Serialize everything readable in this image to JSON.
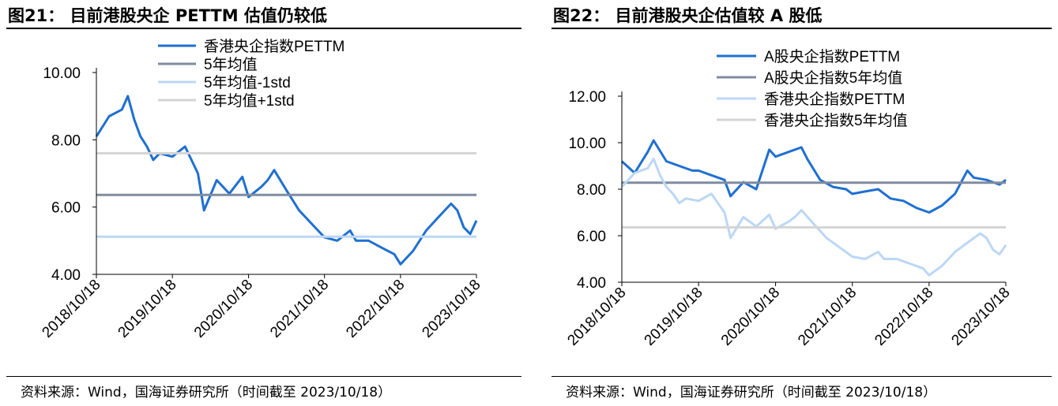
{
  "panel_left": {
    "title": "图21： 目前港股央企 PETTM 估值仍较低",
    "source": "资料来源：Wind，国海证券研究所（时间截至 2023/10/18）"
  },
  "panel_right": {
    "title": "图22： 目前港股央企估值较 A 股低",
    "source": "资料来源：Wind，国海证券研究所（时间截至 2023/10/18）"
  },
  "chart_data": [
    {
      "type": "line",
      "ylim": [
        4.0,
        10.0
      ],
      "yticks": [
        "4.00",
        "6.00",
        "8.00",
        "10.00"
      ],
      "xticks": [
        "2018/10/18",
        "2019/10/18",
        "2020/10/18",
        "2021/10/18",
        "2022/10/18",
        "2023/10/18"
      ],
      "grid": false,
      "legend_position": "top-left",
      "series": [
        {
          "name": "香港央企指数PETTM",
          "color": "#1f6fd1",
          "x": [
            "2018/10/18",
            "2018/12/18",
            "2019/02/18",
            "2019/03/18",
            "2019/04/18",
            "2019/05/18",
            "2019/06/18",
            "2019/07/18",
            "2019/08/18",
            "2019/10/18",
            "2019/12/18",
            "2020/02/18",
            "2020/03/18",
            "2020/05/18",
            "2020/07/18",
            "2020/09/18",
            "2020/10/18",
            "2020/12/18",
            "2021/01/18",
            "2021/02/18",
            "2021/04/18",
            "2021/06/18",
            "2021/08/18",
            "2021/10/18",
            "2021/12/18",
            "2022/02/18",
            "2022/03/18",
            "2022/05/18",
            "2022/07/18",
            "2022/09/18",
            "2022/10/18",
            "2022/12/18",
            "2023/02/18",
            "2023/04/18",
            "2023/06/18",
            "2023/07/18",
            "2023/08/18",
            "2023/09/18",
            "2023/10/18"
          ],
          "values": [
            8.1,
            8.7,
            8.9,
            9.3,
            8.6,
            8.1,
            7.8,
            7.4,
            7.6,
            7.5,
            7.8,
            7.0,
            5.9,
            6.8,
            6.4,
            6.9,
            6.3,
            6.6,
            6.8,
            7.1,
            6.5,
            5.9,
            5.5,
            5.1,
            5.0,
            5.3,
            5.0,
            5.0,
            4.8,
            4.6,
            4.3,
            4.7,
            5.3,
            5.7,
            6.1,
            5.9,
            5.4,
            5.2,
            5.6
          ]
        },
        {
          "name": "5年均值",
          "color": "#7f8ca0",
          "constant": 6.36
        },
        {
          "name": "5年均值-1std",
          "color": "#bcd7f5",
          "constant": 5.12
        },
        {
          "name": "5年均值+1std",
          "color": "#d4d4d4",
          "constant": 7.6
        }
      ]
    },
    {
      "type": "line",
      "ylim": [
        4.0,
        12.0
      ],
      "yticks": [
        "4.00",
        "6.00",
        "8.00",
        "10.00",
        "12.00"
      ],
      "xticks": [
        "2018/10/18",
        "2019/10/18",
        "2020/10/18",
        "2021/10/18",
        "2022/10/18",
        "2023/10/18"
      ],
      "grid": false,
      "legend_position": "top-right",
      "series": [
        {
          "name": "A股央企指数PETTM",
          "color": "#1f6fd1",
          "x": [
            "2018/10/18",
            "2018/12/18",
            "2019/02/18",
            "2019/03/18",
            "2019/05/18",
            "2019/07/18",
            "2019/09/18",
            "2019/10/18",
            "2019/12/18",
            "2020/02/18",
            "2020/03/18",
            "2020/05/18",
            "2020/07/18",
            "2020/09/18",
            "2020/10/18",
            "2020/12/18",
            "2021/02/18",
            "2021/03/18",
            "2021/05/18",
            "2021/07/18",
            "2021/09/18",
            "2021/10/18",
            "2021/12/18",
            "2022/02/18",
            "2022/04/18",
            "2022/06/18",
            "2022/08/18",
            "2022/10/18",
            "2022/12/18",
            "2023/02/18",
            "2023/04/18",
            "2023/05/18",
            "2023/07/18",
            "2023/09/18",
            "2023/10/18"
          ],
          "values": [
            9.2,
            8.7,
            9.6,
            10.1,
            9.2,
            9.0,
            8.8,
            8.8,
            8.6,
            8.4,
            7.7,
            8.3,
            8.0,
            9.7,
            9.4,
            9.6,
            9.8,
            9.3,
            8.4,
            8.1,
            8.0,
            7.8,
            7.9,
            8.0,
            7.6,
            7.5,
            7.2,
            7.0,
            7.3,
            7.8,
            8.8,
            8.5,
            8.4,
            8.2,
            8.4
          ]
        },
        {
          "name": "A股央企指数5年均值",
          "color": "#7f8ca0",
          "constant": 8.28
        },
        {
          "name": "香港央企指数PETTM",
          "color": "#bcd7f5",
          "x": [
            "2018/10/18",
            "2018/12/18",
            "2019/02/18",
            "2019/03/18",
            "2019/04/18",
            "2019/05/18",
            "2019/06/18",
            "2019/07/18",
            "2019/08/18",
            "2019/10/18",
            "2019/12/18",
            "2020/02/18",
            "2020/03/18",
            "2020/05/18",
            "2020/07/18",
            "2020/09/18",
            "2020/10/18",
            "2020/12/18",
            "2021/01/18",
            "2021/02/18",
            "2021/04/18",
            "2021/06/18",
            "2021/08/18",
            "2021/10/18",
            "2021/12/18",
            "2022/02/18",
            "2022/03/18",
            "2022/05/18",
            "2022/07/18",
            "2022/09/18",
            "2022/10/18",
            "2022/12/18",
            "2023/02/18",
            "2023/04/18",
            "2023/06/18",
            "2023/07/18",
            "2023/08/18",
            "2023/09/18",
            "2023/10/18"
          ],
          "values": [
            8.1,
            8.7,
            8.9,
            9.3,
            8.6,
            8.1,
            7.8,
            7.4,
            7.6,
            7.5,
            7.8,
            7.0,
            5.9,
            6.8,
            6.4,
            6.9,
            6.3,
            6.6,
            6.8,
            7.1,
            6.5,
            5.9,
            5.5,
            5.1,
            5.0,
            5.3,
            5.0,
            5.0,
            4.8,
            4.6,
            4.3,
            4.7,
            5.3,
            5.7,
            6.1,
            5.9,
            5.4,
            5.2,
            5.6
          ]
        },
        {
          "name": "香港央企指数5年均值",
          "color": "#d4d4d4",
          "constant": 6.36
        }
      ]
    }
  ]
}
